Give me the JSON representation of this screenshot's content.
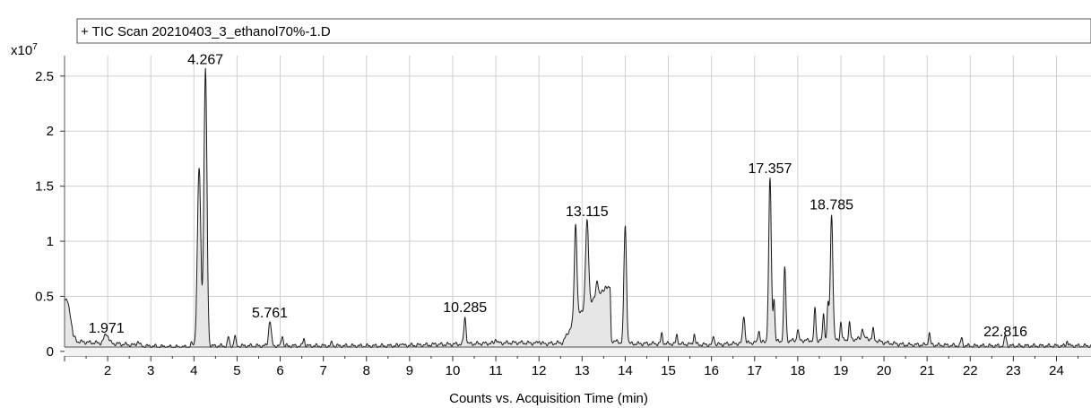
{
  "chart_data": {
    "type": "line",
    "title": "+ TIC Scan 20210403_3_ethanol70%-1.D",
    "xlabel": "Counts vs. Acquisition Time (min)",
    "ylabel": "",
    "y_multiplier": "x10",
    "y_multiplier_exp": "7",
    "xlim": [
      1.0,
      24.8
    ],
    "ylim": [
      -0.05,
      2.8
    ],
    "x_ticks": [
      2,
      3,
      4,
      5,
      6,
      7,
      8,
      9,
      10,
      11,
      12,
      13,
      14,
      15,
      16,
      17,
      18,
      19,
      20,
      21,
      22,
      23,
      24
    ],
    "y_ticks": [
      0,
      0.5,
      1,
      1.5,
      2,
      2.5
    ],
    "grid": true,
    "line_color": "#1a1a1a",
    "peak_labels": [
      {
        "text": "1.971",
        "x": 1.971,
        "y": 0.12
      },
      {
        "text": "4.267",
        "x": 4.267,
        "y": 2.56
      },
      {
        "text": "5.761",
        "x": 5.761,
        "y": 0.26
      },
      {
        "text": "10.285",
        "x": 10.285,
        "y": 0.31
      },
      {
        "text": "13.115",
        "x": 13.115,
        "y": 1.18
      },
      {
        "text": "17.357",
        "x": 17.357,
        "y": 1.57
      },
      {
        "text": "18.785",
        "x": 18.785,
        "y": 1.24
      },
      {
        "text": "22.816",
        "x": 22.816,
        "y": 0.09
      }
    ],
    "baseline": [
      [
        1.0,
        0.48
      ],
      [
        1.08,
        0.44
      ],
      [
        1.15,
        0.3
      ],
      [
        1.2,
        0.14
      ],
      [
        1.3,
        0.09
      ],
      [
        1.6,
        0.08
      ],
      [
        2.2,
        0.07
      ],
      [
        2.8,
        0.05
      ],
      [
        3.5,
        0.04
      ],
      [
        4.0,
        0.04
      ],
      [
        4.5,
        0.05
      ],
      [
        5.5,
        0.05
      ],
      [
        6.5,
        0.05
      ],
      [
        7.5,
        0.05
      ],
      [
        8.5,
        0.05
      ],
      [
        9.5,
        0.06
      ],
      [
        10.5,
        0.07
      ],
      [
        11.5,
        0.08
      ],
      [
        12.2,
        0.07
      ],
      [
        12.55,
        0.08
      ],
      [
        12.85,
        0.3
      ],
      [
        13.2,
        0.45
      ],
      [
        13.5,
        0.55
      ],
      [
        13.65,
        0.58
      ],
      [
        13.68,
        0.1
      ],
      [
        14.0,
        0.07
      ],
      [
        15.0,
        0.07
      ],
      [
        16.0,
        0.06
      ],
      [
        16.5,
        0.07
      ],
      [
        17.0,
        0.08
      ],
      [
        18.0,
        0.1
      ],
      [
        19.0,
        0.1
      ],
      [
        19.6,
        0.12
      ],
      [
        20.0,
        0.08
      ],
      [
        20.5,
        0.06
      ],
      [
        21.0,
        0.06
      ],
      [
        22.0,
        0.05
      ],
      [
        23.0,
        0.05
      ],
      [
        24.0,
        0.05
      ],
      [
        24.8,
        0.05
      ]
    ],
    "peaks": [
      {
        "x": 1.97,
        "y": 0.16,
        "w": 0.05
      },
      {
        "x": 2.7,
        "y": 0.09,
        "w": 0.03
      },
      {
        "x": 3.95,
        "y": 0.07,
        "w": 0.03
      },
      {
        "x": 4.12,
        "y": 1.66,
        "w": 0.04
      },
      {
        "x": 4.267,
        "y": 2.56,
        "w": 0.035
      },
      {
        "x": 4.8,
        "y": 0.13,
        "w": 0.02
      },
      {
        "x": 4.95,
        "y": 0.14,
        "w": 0.02
      },
      {
        "x": 5.761,
        "y": 0.28,
        "w": 0.03
      },
      {
        "x": 6.05,
        "y": 0.15,
        "w": 0.02
      },
      {
        "x": 6.55,
        "y": 0.12,
        "w": 0.02
      },
      {
        "x": 7.2,
        "y": 0.08,
        "w": 0.02
      },
      {
        "x": 8.8,
        "y": 0.08,
        "w": 0.02
      },
      {
        "x": 9.6,
        "y": 0.07,
        "w": 0.02
      },
      {
        "x": 10.285,
        "y": 0.31,
        "w": 0.025
      },
      {
        "x": 11.0,
        "y": 0.12,
        "w": 0.02
      },
      {
        "x": 12.0,
        "y": 0.1,
        "w": 0.02
      },
      {
        "x": 12.85,
        "y": 1.16,
        "w": 0.03
      },
      {
        "x": 13.115,
        "y": 1.18,
        "w": 0.035
      },
      {
        "x": 13.35,
        "y": 0.65,
        "w": 0.025
      },
      {
        "x": 13.55,
        "y": 0.6,
        "w": 0.02
      },
      {
        "x": 14.0,
        "y": 1.14,
        "w": 0.03
      },
      {
        "x": 14.85,
        "y": 0.16,
        "w": 0.02
      },
      {
        "x": 15.2,
        "y": 0.15,
        "w": 0.02
      },
      {
        "x": 15.6,
        "y": 0.16,
        "w": 0.02
      },
      {
        "x": 16.05,
        "y": 0.14,
        "w": 0.02
      },
      {
        "x": 16.75,
        "y": 0.33,
        "w": 0.025
      },
      {
        "x": 17.1,
        "y": 0.2,
        "w": 0.02
      },
      {
        "x": 17.357,
        "y": 1.57,
        "w": 0.03
      },
      {
        "x": 17.45,
        "y": 0.48,
        "w": 0.02
      },
      {
        "x": 17.7,
        "y": 0.76,
        "w": 0.025
      },
      {
        "x": 18.0,
        "y": 0.2,
        "w": 0.02
      },
      {
        "x": 18.4,
        "y": 0.4,
        "w": 0.02
      },
      {
        "x": 18.6,
        "y": 0.35,
        "w": 0.02
      },
      {
        "x": 18.7,
        "y": 0.42,
        "w": 0.02
      },
      {
        "x": 18.785,
        "y": 1.24,
        "w": 0.03
      },
      {
        "x": 19.0,
        "y": 0.27,
        "w": 0.02
      },
      {
        "x": 19.2,
        "y": 0.26,
        "w": 0.02
      },
      {
        "x": 19.5,
        "y": 0.22,
        "w": 0.02
      },
      {
        "x": 19.75,
        "y": 0.2,
        "w": 0.02
      },
      {
        "x": 21.05,
        "y": 0.17,
        "w": 0.02
      },
      {
        "x": 21.8,
        "y": 0.12,
        "w": 0.02
      },
      {
        "x": 22.816,
        "y": 0.14,
        "w": 0.025
      },
      {
        "x": 24.25,
        "y": 0.1,
        "w": 0.02
      }
    ]
  }
}
